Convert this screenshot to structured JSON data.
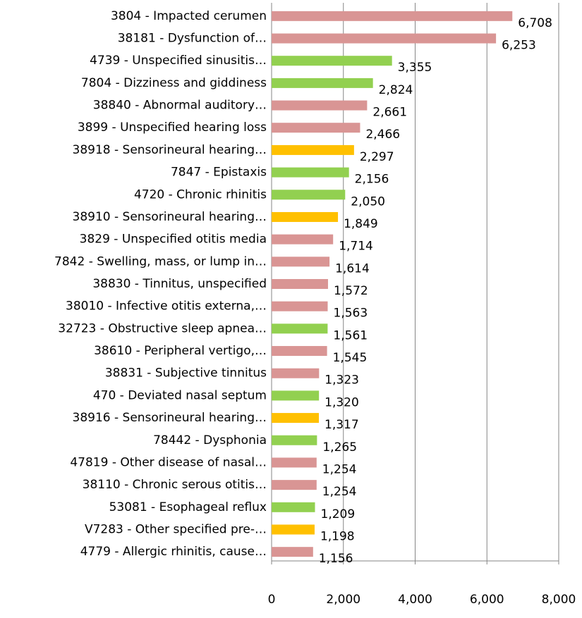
{
  "chart_data": {
    "type": "bar",
    "orientation": "horizontal",
    "categories": [
      "3804 - Impacted cerumen",
      "38181 - Dysfunction of…",
      "4739 - Unspecified sinusitis…",
      "7804 - Dizziness and giddiness",
      "38840 - Abnormal auditory…",
      "3899 - Unspecified hearing loss",
      "38918 - Sensorineural hearing…",
      "7847 - Epistaxis",
      "4720 - Chronic rhinitis",
      "38910 - Sensorineural hearing…",
      "3829 - Unspecified otitis media",
      "7842 - Swelling, mass, or lump in…",
      "38830 - Tinnitus, unspecified",
      "38010 - Infective otitis externa,…",
      "32723 - Obstructive sleep apnea…",
      "38610 - Peripheral vertigo,…",
      "38831 - Subjective tinnitus",
      "470 - Deviated nasal septum",
      "38916 - Sensorineural hearing…",
      "78442 - Dysphonia",
      "47819 - Other disease of nasal…",
      "38110 - Chronic serous otitis…",
      "53081 - Esophageal reflux",
      "V7283 - Other specified pre-…",
      "4779 - Allergic rhinitis, cause…"
    ],
    "values": [
      6708,
      6253,
      3355,
      2824,
      2661,
      2466,
      2297,
      2156,
      2050,
      1849,
      1714,
      1614,
      1572,
      1563,
      1561,
      1545,
      1323,
      1320,
      1317,
      1265,
      1254,
      1254,
      1209,
      1198,
      1156
    ],
    "value_labels": [
      "6,708",
      "6,253",
      "3,355",
      "2,824",
      "2,661",
      "2,466",
      "2,297",
      "2,156",
      "2,050",
      "1,849",
      "1,714",
      "1,614",
      "1,572",
      "1,563",
      "1,561",
      "1,545",
      "1,323",
      "1,320",
      "1,317",
      "1,265",
      "1,254",
      "1,254",
      "1,209",
      "1,198",
      "1,156"
    ],
    "colors": [
      "#d99594",
      "#d99594",
      "#92d050",
      "#92d050",
      "#d99594",
      "#d99594",
      "#ffc000",
      "#92d050",
      "#92d050",
      "#ffc000",
      "#d99594",
      "#d99594",
      "#d99594",
      "#d99594",
      "#92d050",
      "#d99594",
      "#d99594",
      "#92d050",
      "#ffc000",
      "#92d050",
      "#d99594",
      "#d99594",
      "#92d050",
      "#ffc000",
      "#d99594"
    ],
    "xlim": [
      0,
      8000
    ],
    "xticks": [
      0,
      {
        "value": 2000,
        "label": "2,000"
      },
      {
        "value": 4000,
        "label": "4,000"
      },
      {
        "value": 6000,
        "label": "6,000"
      },
      {
        "value": 8000,
        "label": "8,000"
      }
    ],
    "grid": true
  }
}
